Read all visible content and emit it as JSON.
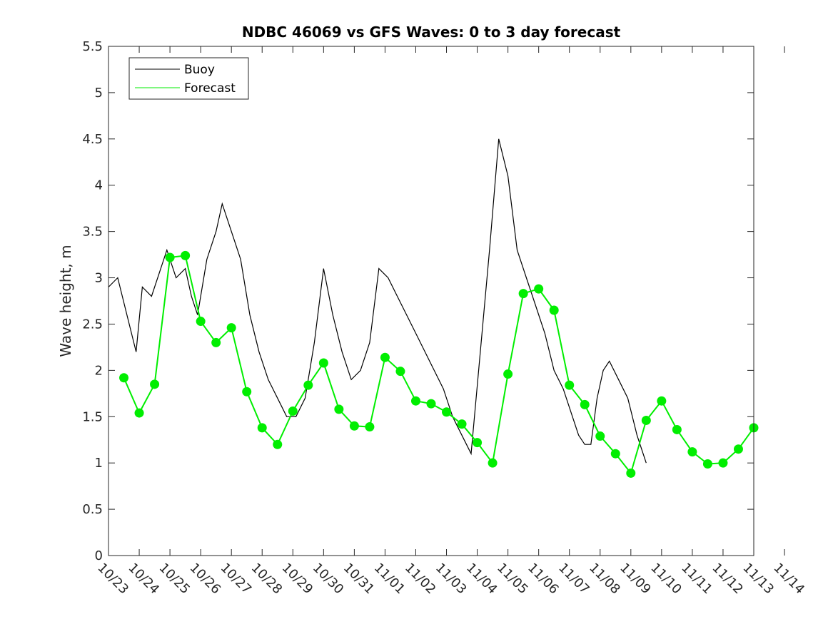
{
  "chart_data": {
    "type": "line",
    "title": "NDBC 46069 vs GFS Waves: 0 to 3 day forecast",
    "xlabel": "",
    "ylabel": "Wave height, m",
    "ylim": [
      0,
      5.5
    ],
    "yticks": [
      "0",
      "0.5",
      "1",
      "1.5",
      "2",
      "2.5",
      "3",
      "3.5",
      "4",
      "4.5",
      "5",
      "5.5"
    ],
    "xlim": [
      0,
      21
    ],
    "xtick_labels": [
      "10/23",
      "10/24",
      "10/25",
      "10/26",
      "10/27",
      "10/28",
      "10/29",
      "10/30",
      "10/31",
      "11/01",
      "11/02",
      "11/03",
      "11/04",
      "11/05",
      "11/06",
      "11/07",
      "11/08",
      "11/09",
      "11/10",
      "11/11",
      "11/12",
      "11/13",
      "11/14"
    ],
    "x_units": "days since 10/23 00:00",
    "legend": {
      "position": "top-left",
      "entries": [
        "Buoy",
        "Forecast"
      ]
    },
    "colors": {
      "buoy": "#000000",
      "forecast": "#00ee00"
    },
    "series": [
      {
        "name": "Buoy",
        "x": [
          0,
          0.3,
          0.6,
          0.9,
          1.1,
          1.4,
          1.7,
          1.9,
          2.2,
          2.5,
          2.7,
          2.9,
          3.2,
          3.5,
          3.7,
          3.9,
          4.1,
          4.3,
          4.6,
          4.9,
          5.2,
          5.5,
          5.8,
          6.1,
          6.4,
          6.7,
          7.0,
          7.3,
          7.6,
          7.9,
          8.2,
          8.5,
          8.8,
          9.1,
          9.4,
          9.7,
          10.0,
          10.3,
          10.6,
          10.9,
          11.2,
          11.5,
          11.8,
          12.1,
          12.4,
          12.7,
          13.0,
          13.3,
          13.6,
          13.9,
          14.2,
          14.5,
          14.8,
          15.1,
          15.3,
          15.5,
          15.7,
          15.9,
          16.1,
          16.3,
          16.6,
          16.9,
          17.2,
          17.5,
          17.8,
          18.1,
          18.4,
          18.7,
          19.0,
          19.3,
          19.6,
          19.9,
          20.2,
          20.5,
          20.7,
          21.0
        ],
        "y": [
          2.9,
          3.0,
          2.6,
          2.2,
          2.9,
          2.8,
          3.1,
          3.3,
          3.0,
          3.1,
          2.8,
          2.6,
          3.2,
          3.5,
          3.8,
          3.6,
          3.4,
          3.2,
          2.6,
          2.2,
          1.9,
          1.7,
          1.5,
          1.5,
          1.7,
          2.3,
          3.1,
          2.6,
          2.2,
          1.9,
          2.0,
          2.3,
          3.1,
          3.0,
          2.8,
          2.6,
          2.4,
          2.2,
          2.0,
          1.8,
          1.5,
          1.3,
          1.1,
          2.2,
          3.3,
          4.5,
          4.1,
          3.3,
          3.0,
          2.7,
          2.4,
          2.0,
          1.8,
          1.5,
          1.3,
          1.2,
          1.2,
          1.7,
          2.0,
          2.1,
          1.9,
          1.7,
          1.3,
          1.0,
          null,
          null,
          null,
          null,
          null,
          null,
          null,
          null,
          null,
          null,
          null,
          null
        ]
      },
      {
        "name": "Forecast",
        "x": [
          0.5,
          1.0,
          1.5,
          2.0,
          2.5,
          3.0,
          3.5,
          4.0,
          4.5,
          5.0,
          5.5,
          6.0,
          6.5,
          7.0,
          7.5,
          8.0,
          8.5,
          9.0,
          9.5,
          10.0,
          10.5,
          11.0,
          11.5,
          12.0,
          12.5,
          13.0,
          13.5,
          14.0,
          14.5,
          15.0,
          15.5,
          16.0,
          16.5,
          17.0,
          17.5,
          18.0,
          18.5,
          19.0,
          19.5,
          20.0,
          20.5,
          21.0
        ],
        "y": [
          1.92,
          1.54,
          1.85,
          3.22,
          3.24,
          2.53,
          2.3,
          2.46,
          1.77,
          1.38,
          1.2,
          1.56,
          1.84,
          2.08,
          1.58,
          1.4,
          1.39,
          2.14,
          1.99,
          1.67,
          1.64,
          1.55,
          1.42,
          1.22,
          1.0,
          1.96,
          2.83,
          2.88,
          2.65,
          1.84,
          1.63,
          1.29,
          1.1,
          0.89,
          1.46,
          1.67,
          1.36,
          1.12,
          0.99,
          1.0,
          1.15,
          1.38
        ]
      }
    ]
  }
}
